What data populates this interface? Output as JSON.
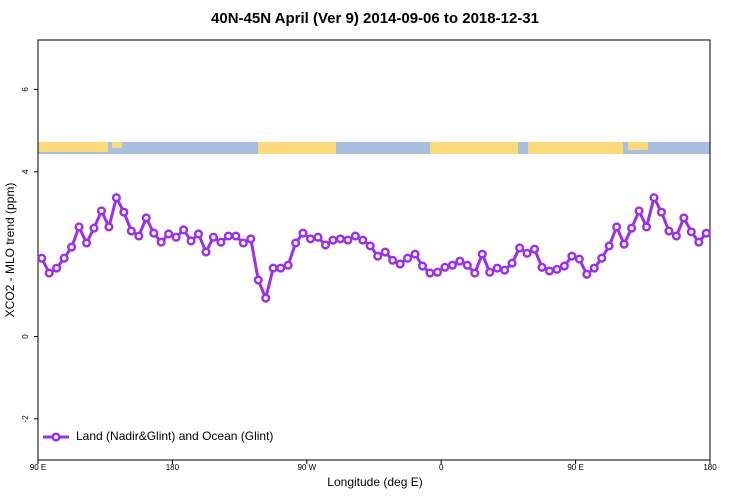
{
  "chart_data": {
    "type": "line",
    "title": "40N-45N April (Ver 9)   2014-09-06 to 2018-12-31",
    "x_label": "Longitude (deg E)",
    "y_label": "XCO2 - MLO trend (ppm)",
    "xlim": [
      90,
      540
    ],
    "xticks": [
      {
        "value": 90,
        "label": "90 E"
      },
      180,
      {
        "value": 270,
        "label": "90 W"
      },
      {
        "value": 360,
        "label": "0"
      },
      {
        "value": 450,
        "label": "90 E"
      },
      {
        "value": 540,
        "label": "180"
      }
    ],
    "ylim": [
      -3,
      7.2
    ],
    "yticks": [
      -2,
      0,
      4,
      6
    ],
    "legend": "bottom-left",
    "x": [
      92.5,
      97.5,
      102.5,
      107.5,
      112.5,
      117.5,
      122.5,
      127.5,
      132.5,
      137.5,
      142.5,
      147.5,
      152.5,
      157.5,
      162.5,
      167.5,
      172.5,
      177.5,
      182.5,
      187.5,
      192.5,
      197.5,
      202.5,
      207.5,
      212.5,
      217.5,
      222.5,
      227.5,
      232.5,
      237.5,
      242.5,
      247.5,
      252.5,
      257.5,
      262.5,
      267.5,
      272.5,
      277.5,
      282.5,
      287.5,
      292.5,
      297.5,
      302.5,
      307.5,
      312.5,
      317.5,
      322.5,
      327.5,
      332.5,
      337.5,
      342.5,
      347.5,
      352.5,
      357.5,
      362.5,
      367.5,
      372.5,
      377.5,
      382.5,
      387.5,
      392.5,
      397.5,
      402.5,
      407.5,
      412.5,
      417.5,
      422.5,
      427.5,
      432.5,
      437.5,
      442.5,
      447.5,
      452.5,
      457.5,
      462.5,
      467.5,
      472.5,
      477.5,
      482.5,
      487.5,
      492.5,
      497.5,
      502.5,
      507.5,
      512.5,
      517.5,
      522.5,
      527.5,
      532.5,
      537.5
    ],
    "series": [
      {
        "name": "Land (Nadir&Glint) and Ocean (Glint)",
        "color": "#9b30e8",
        "values": [
          1.9,
          1.54,
          1.66,
          1.9,
          2.17,
          2.66,
          2.27,
          2.63,
          3.05,
          2.66,
          3.37,
          3.02,
          2.56,
          2.44,
          2.88,
          2.51,
          2.29,
          2.49,
          2.41,
          2.59,
          2.32,
          2.49,
          2.05,
          2.41,
          2.29,
          2.44,
          2.44,
          2.27,
          2.37,
          1.37,
          0.93,
          1.66,
          1.66,
          1.73,
          2.27,
          2.51,
          2.37,
          2.41,
          2.22,
          2.34,
          2.37,
          2.34,
          2.44,
          2.34,
          2.2,
          1.95,
          2.05,
          1.85,
          1.76,
          1.9,
          2.0,
          1.71,
          1.54,
          1.56,
          1.68,
          1.73,
          1.83,
          1.73,
          1.54,
          2.0,
          1.56,
          1.66,
          1.61,
          1.78,
          2.15,
          2.02,
          2.12,
          1.68,
          1.59,
          1.63,
          1.71,
          1.95,
          1.88,
          1.51,
          1.66,
          1.9,
          2.2,
          2.66,
          2.24,
          2.63,
          3.05,
          2.66,
          3.37,
          3.02,
          2.56,
          2.44,
          2.88,
          2.54,
          2.29,
          2.51
        ]
      }
    ]
  }
}
